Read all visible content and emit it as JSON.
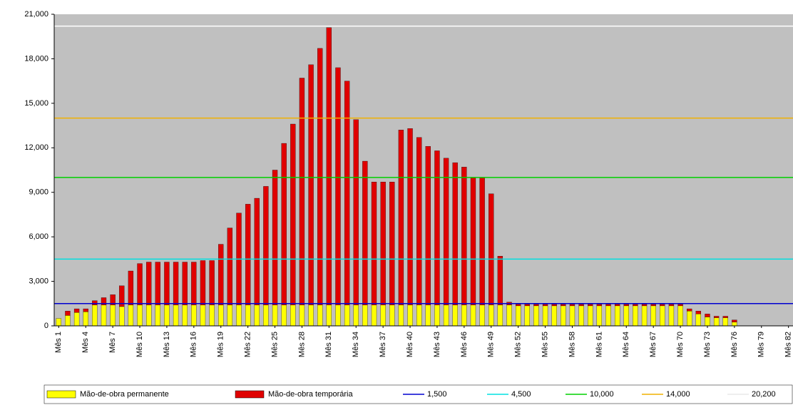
{
  "chart_data": {
    "type": "stacked_bar",
    "categories": [
      "Mês 1",
      null,
      null,
      "Mês 4",
      null,
      null,
      "Mês 7",
      null,
      null,
      "Mês 10",
      null,
      null,
      "Mês 13",
      null,
      null,
      "Mês 16",
      null,
      null,
      "Mês 19",
      null,
      null,
      "Mês 22",
      null,
      null,
      "Mês 25",
      null,
      null,
      "Mês 28",
      null,
      null,
      "Mês 31",
      null,
      null,
      "Mês 34",
      null,
      null,
      "Mês 37",
      null,
      null,
      "Mês 40",
      null,
      null,
      "Mês 43",
      null,
      null,
      "Mês 46",
      null,
      null,
      "Mês 49",
      null,
      null,
      "Mês 52",
      null,
      null,
      "Mês 55",
      null,
      null,
      "Mês 58",
      null,
      null,
      "Mês 61",
      null,
      null,
      "Mês 64",
      null,
      null,
      "Mês 67",
      null,
      null,
      "Mês 70",
      null,
      null,
      "Mês 73",
      null,
      null,
      "Mês 76",
      null,
      null,
      "Mês 79",
      null,
      null,
      "Mês 82"
    ],
    "series": [
      {
        "name": "Mão-de-obra permanente",
        "color": "#ffff00",
        "values": [
          500,
          700,
          900,
          950,
          1400,
          1400,
          1400,
          1300,
          1400,
          1400,
          1400,
          1400,
          1400,
          1400,
          1400,
          1400,
          1400,
          1400,
          1400,
          1400,
          1400,
          1400,
          1400,
          1400,
          1400,
          1400,
          1400,
          1400,
          1400,
          1400,
          1400,
          1400,
          1400,
          1400,
          1400,
          1400,
          1400,
          1400,
          1400,
          1400,
          1400,
          1400,
          1400,
          1400,
          1400,
          1400,
          1400,
          1400,
          1400,
          1400,
          1400,
          1350,
          1350,
          1350,
          1350,
          1350,
          1350,
          1350,
          1350,
          1350,
          1350,
          1350,
          1350,
          1350,
          1350,
          1350,
          1350,
          1350,
          1350,
          1350,
          1000,
          800,
          600,
          550,
          550,
          250,
          0,
          0,
          0,
          0,
          0,
          0
        ]
      },
      {
        "name": "Mão-de-obra temporária",
        "color": "#e00000",
        "values": [
          0,
          300,
          250,
          200,
          300,
          500,
          700,
          1400,
          2300,
          2800,
          2900,
          2900,
          2900,
          2900,
          2900,
          2900,
          3000,
          3000,
          4100,
          5200,
          6200,
          6800,
          7200,
          8000,
          9100,
          10900,
          12200,
          15300,
          16200,
          17300,
          18700,
          16000,
          15100,
          12500,
          9700,
          8300,
          8300,
          8300,
          11800,
          11900,
          11300,
          10700,
          10400,
          9900,
          9600,
          9300,
          8600,
          8600,
          7500,
          3300,
          200,
          100,
          100,
          100,
          100,
          100,
          100,
          100,
          100,
          100,
          100,
          100,
          100,
          100,
          100,
          100,
          100,
          100,
          100,
          100,
          150,
          200,
          200,
          100,
          100,
          150,
          0,
          0,
          0,
          0,
          0,
          0
        ]
      }
    ],
    "reference_lines": [
      {
        "name": "1,500",
        "value": 1500,
        "color": "#0000d0"
      },
      {
        "name": "4,500",
        "value": 4500,
        "color": "#00e0e0"
      },
      {
        "name": "10,000",
        "value": 10000,
        "color": "#00d000"
      },
      {
        "name": "14,000",
        "value": 14000,
        "color": "#f0b000"
      },
      {
        "name": "20,200",
        "value": 20200,
        "color": "#ffffff"
      }
    ],
    "ylim": [
      0,
      21000
    ],
    "yticks": [
      0,
      {
        "value": 3000,
        "label": "3,000"
      },
      {
        "value": 6000,
        "label": "6,000"
      },
      {
        "value": 9000,
        "label": "9,000"
      },
      {
        "value": 12000,
        "label": "12,000"
      },
      {
        "value": 15000,
        "label": "15,000"
      },
      {
        "value": 18000,
        "label": "18,000"
      },
      {
        "value": 21000,
        "label": "21,000"
      }
    ],
    "plot_background": "#c0c0c0",
    "legend": "bottom"
  }
}
